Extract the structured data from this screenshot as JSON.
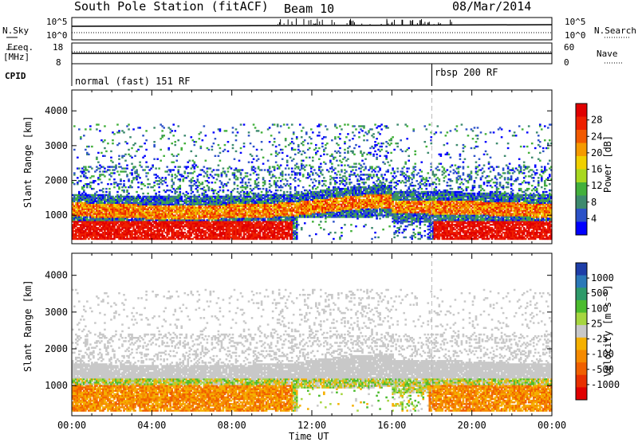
{
  "header": {
    "station_title": "South Pole Station (fitACF)",
    "beam": "Beam 10",
    "date": "08/Mar/2014"
  },
  "strip_panels": {
    "nsky_label": "N.Sky",
    "nsearch_label": "N.Search",
    "nsky_ticks": [
      "10^5",
      "10^0"
    ],
    "nsearch_ticks": [
      "10^5",
      "10^0"
    ],
    "freq_label_1": "Freq.",
    "freq_label_2": "[MHz]",
    "freq_ticks": [
      "18",
      "8"
    ],
    "nave_label": "Nave",
    "nave_ticks": [
      "60",
      "0"
    ],
    "cpid_label": "CPID",
    "cpid_modes": [
      {
        "text": "normal (fast) 151 RF",
        "start_hour": 0
      },
      {
        "text": "rbsp 200 RF",
        "start_hour": 18
      }
    ]
  },
  "chart_data": [
    {
      "type": "heatmap",
      "name": "power",
      "xlabel": "",
      "ylabel": "Slant Range [km]",
      "x_ticks": [
        "00:00",
        "04:00",
        "08:00",
        "12:00",
        "16:00",
        "20:00",
        "00:00"
      ],
      "y_ticks": [
        1000,
        2000,
        3000,
        4000
      ],
      "xlim_hours": [
        0,
        24
      ],
      "ylim_km": [
        180,
        4600
      ],
      "colorbar": {
        "label": "Power [dB]",
        "ticks": [
          "4",
          "8",
          "12",
          "16",
          "20",
          "24",
          "28"
        ],
        "colors": [
          "#0000ff",
          "#2c52c8",
          "#3d8a6e",
          "#43b03c",
          "#a8d820",
          "#f0d000",
          "#f59a00",
          "#f25a00",
          "#ee2000",
          "#e00000"
        ]
      }
    },
    {
      "type": "heatmap",
      "name": "velocity",
      "xlabel": "Time UT",
      "ylabel": "Slant Range [km]",
      "x_ticks": [
        "00:00",
        "04:00",
        "08:00",
        "12:00",
        "16:00",
        "20:00",
        "00:00"
      ],
      "y_ticks": [
        1000,
        2000,
        3000,
        4000
      ],
      "xlim_hours": [
        0,
        24
      ],
      "ylim_km": [
        180,
        4600
      ],
      "colorbar": {
        "label": "Velocity [m s⁻¹]",
        "ticks": [
          "1000",
          "500",
          "100",
          "25",
          "-25",
          "-100",
          "-500",
          "-1000"
        ],
        "colors": [
          "#1e3ea8",
          "#2b78b8",
          "#2e9a6a",
          "#4cbc2e",
          "#a6d640",
          "#c8c8c8",
          "#f5b000",
          "#f58a00",
          "#f06000",
          "#e83000",
          "#e00000"
        ]
      }
    }
  ]
}
